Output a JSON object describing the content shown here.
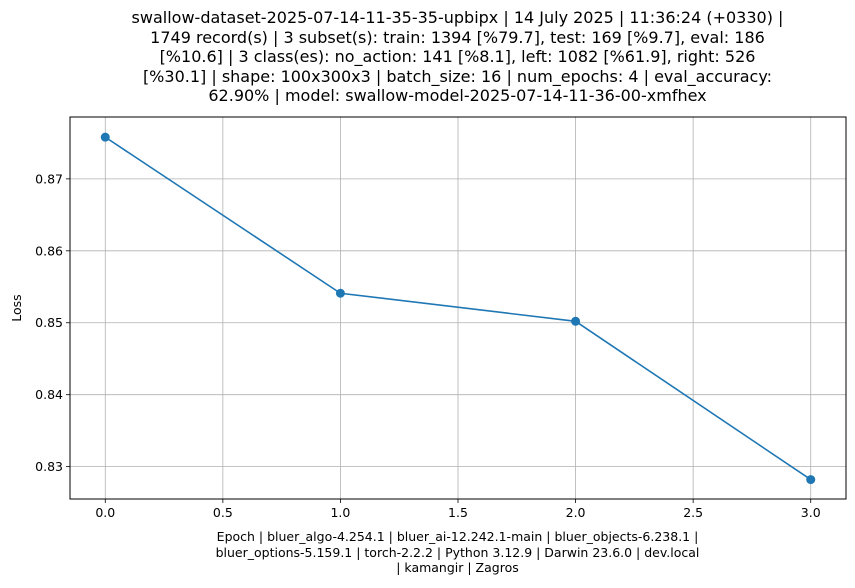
{
  "chart_data": {
    "type": "line",
    "title_lines": [
      "swallow-dataset-2025-07-14-11-35-35-upbipx | 14 July 2025 | 11:36:24 (+0330) |",
      "1749 record(s) | 3 subset(s): train: 1394 [%79.7], test: 169 [%9.7], eval: 186",
      "[%10.6] | 3 class(es): no_action: 141 [%8.1], left: 1082 [%61.9], right: 526",
      "[%30.1] | shape: 100x300x3 | batch_size: 16 | num_epochs: 4 | eval_accuracy:",
      "62.90% | model: swallow-model-2025-07-14-11-36-00-xmfhex"
    ],
    "xlabel_lines": [
      "Epoch | bluer_algo-4.254.1 | bluer_ai-12.242.1-main | bluer_objects-6.238.1 |",
      "bluer_options-5.159.1 | torch-2.2.2 | Python 3.12.9 | Darwin 23.6.0 | dev.local",
      "| kamangir | Zagros"
    ],
    "ylabel": "Loss",
    "x": [
      0.0,
      1.0,
      2.0,
      3.0
    ],
    "y": [
      0.8758,
      0.8541,
      0.8502,
      0.8282
    ],
    "xlim": [
      -0.15,
      3.15
    ],
    "ylim": [
      0.8255,
      0.8786
    ],
    "xticks": [
      0.0,
      0.5,
      1.0,
      1.5,
      2.0,
      2.5,
      3.0
    ],
    "xtick_labels": [
      "0.0",
      "0.5",
      "1.0",
      "1.5",
      "2.0",
      "2.5",
      "3.0"
    ],
    "yticks": [
      0.83,
      0.84,
      0.85,
      0.86,
      0.87
    ],
    "ytick_labels": [
      "0.83",
      "0.84",
      "0.85",
      "0.86",
      "0.87"
    ],
    "grid": true,
    "line_color": "#1f77b4",
    "marker": "circle"
  }
}
